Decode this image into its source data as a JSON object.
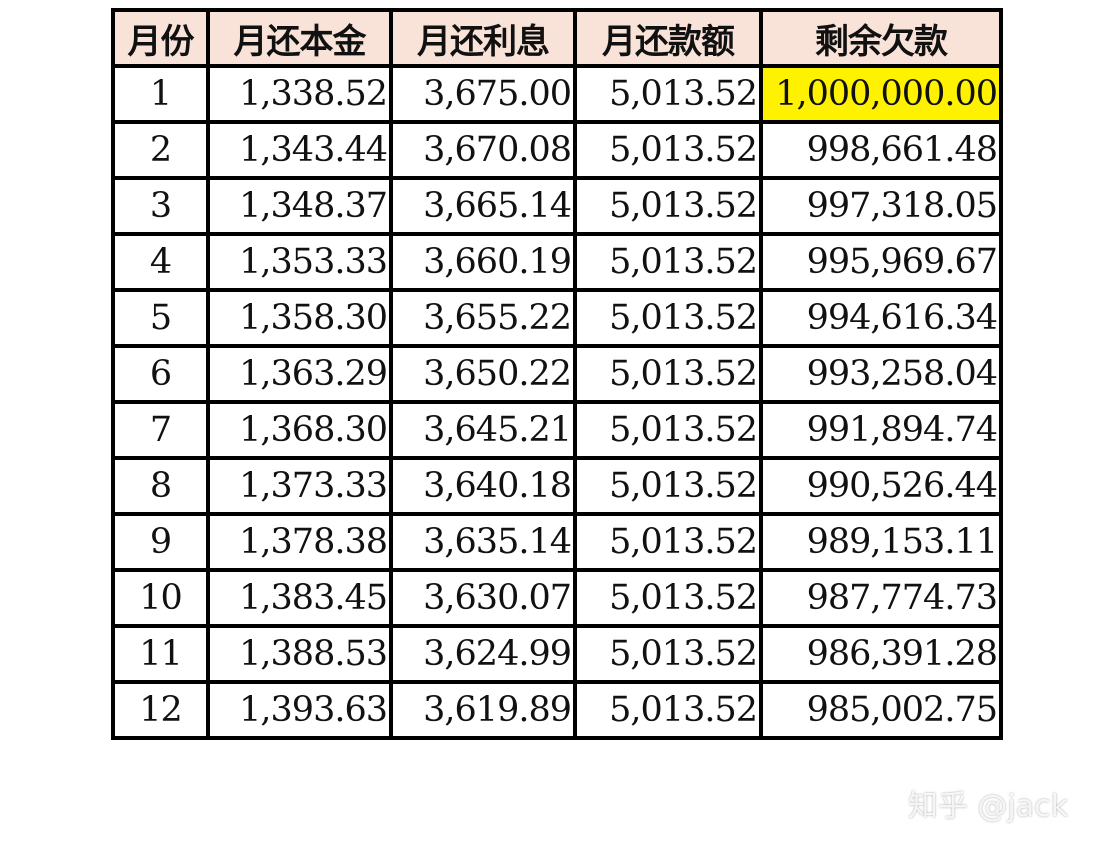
{
  "headers": [
    "月份",
    "月还本金",
    "月还利息",
    "月还款额",
    "剩余欠款"
  ],
  "rows": [
    {
      "month": "1",
      "principal": "1,338.52",
      "interest": "3,675.00",
      "payment": "5,013.52",
      "balance": "1,000,000.00"
    },
    {
      "month": "2",
      "principal": "1,343.44",
      "interest": "3,670.08",
      "payment": "5,013.52",
      "balance": "998,661.48"
    },
    {
      "month": "3",
      "principal": "1,348.37",
      "interest": "3,665.14",
      "payment": "5,013.52",
      "balance": "997,318.05"
    },
    {
      "month": "4",
      "principal": "1,353.33",
      "interest": "3,660.19",
      "payment": "5,013.52",
      "balance": "995,969.67"
    },
    {
      "month": "5",
      "principal": "1,358.30",
      "interest": "3,655.22",
      "payment": "5,013.52",
      "balance": "994,616.34"
    },
    {
      "month": "6",
      "principal": "1,363.29",
      "interest": "3,650.22",
      "payment": "5,013.52",
      "balance": "993,258.04"
    },
    {
      "month": "7",
      "principal": "1,368.30",
      "interest": "3,645.21",
      "payment": "5,013.52",
      "balance": "991,894.74"
    },
    {
      "month": "8",
      "principal": "1,373.33",
      "interest": "3,640.18",
      "payment": "5,013.52",
      "balance": "990,526.44"
    },
    {
      "month": "9",
      "principal": "1,378.38",
      "interest": "3,635.14",
      "payment": "5,013.52",
      "balance": "989,153.11"
    },
    {
      "month": "10",
      "principal": "1,383.45",
      "interest": "3,630.07",
      "payment": "5,013.52",
      "balance": "987,774.73"
    },
    {
      "month": "11",
      "principal": "1,388.53",
      "interest": "3,624.99",
      "payment": "5,013.52",
      "balance": "986,391.28"
    },
    {
      "month": "12",
      "principal": "1,393.63",
      "interest": "3,619.89",
      "payment": "5,013.52",
      "balance": "985,002.75"
    }
  ],
  "highlight_cell": {
    "row": 0,
    "column": "balance",
    "color": "#fff200"
  },
  "header_color": "#f9e3d8",
  "watermark": "知乎 @jack"
}
